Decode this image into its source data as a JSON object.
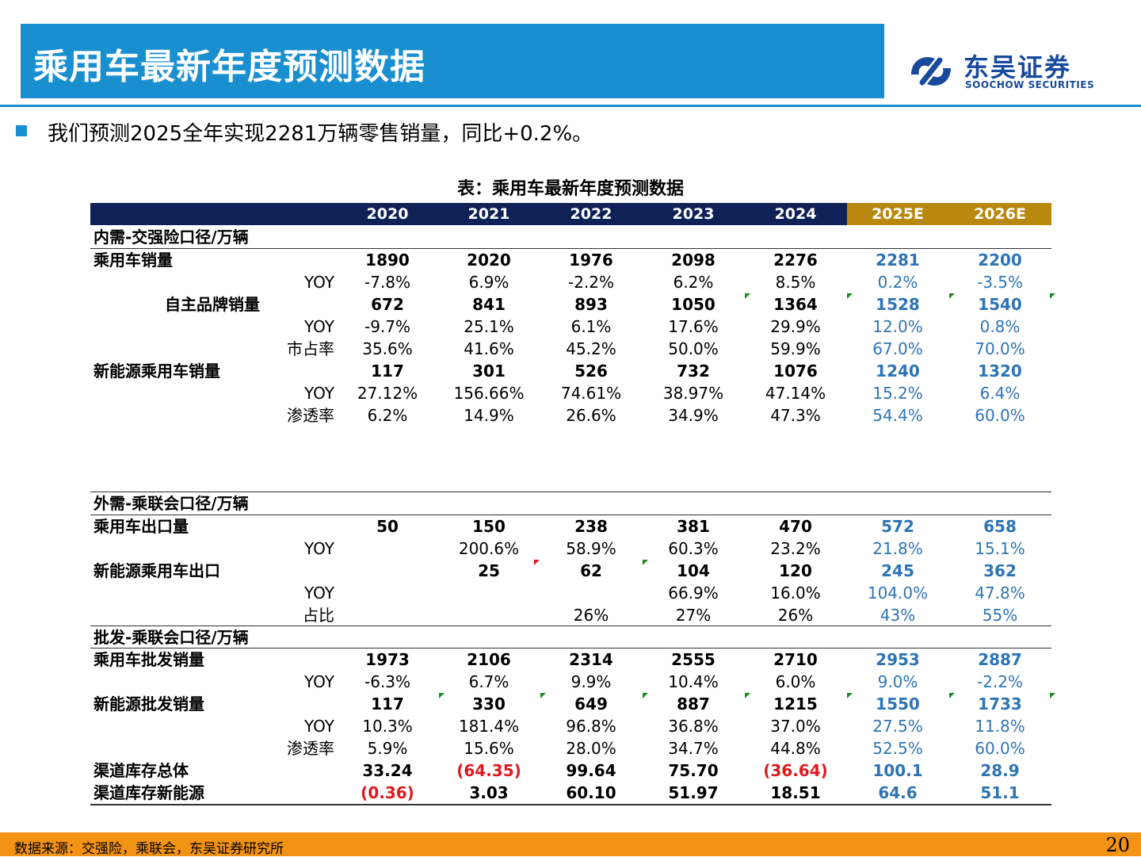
{
  "title": "乘用车最新年度预测数据",
  "logo": {
    "cn": "东吴证券",
    "en": "SOOCHOW SECURITIES",
    "icon": "soochow-logo-icon"
  },
  "bullet": "我们预测2025全年实现2281万辆零售销量，同比+0.2%。",
  "table_caption": "表：乘用车最新年度预测数据",
  "columns": [
    "2020",
    "2021",
    "2022",
    "2023",
    "2024",
    "2025E",
    "2026E"
  ],
  "sections": [
    {
      "title": "内需-交强险口径/万辆",
      "rows": [
        {
          "label": "乘用车销量",
          "indent": false,
          "values": [
            "1890",
            "2020",
            "1976",
            "2098",
            "2276",
            "2281",
            "2200"
          ],
          "bold": true
        },
        {
          "label": "YOY",
          "indent": true,
          "values": [
            "-7.8%",
            "6.9%",
            "-2.2%",
            "6.2%",
            "8.5%",
            "0.2%",
            "-3.5%"
          ]
        },
        {
          "label": "自主品牌销量",
          "indent": "mid",
          "values": [
            "672",
            "841",
            "893",
            "1050",
            "1364",
            "1528",
            "1540"
          ],
          "bold": true
        },
        {
          "label": "YOY",
          "indent": true,
          "values": [
            "-9.7%",
            "25.1%",
            "6.1%",
            "17.6%",
            "29.9%",
            "12.0%",
            "0.8%"
          ]
        },
        {
          "label": "市占率",
          "indent": true,
          "values": [
            "35.6%",
            "41.6%",
            "45.2%",
            "50.0%",
            "59.9%",
            "67.0%",
            "70.0%"
          ]
        },
        {
          "label": "新能源乘用车销量",
          "indent": false,
          "values": [
            "117",
            "301",
            "526",
            "732",
            "1076",
            "1240",
            "1320"
          ],
          "bold": true
        },
        {
          "label": "YOY",
          "indent": true,
          "values": [
            "27.12%",
            "156.66%",
            "74.61%",
            "38.97%",
            "47.14%",
            "15.2%",
            "6.4%"
          ]
        },
        {
          "label": "渗透率",
          "indent": true,
          "values": [
            "6.2%",
            "14.9%",
            "26.6%",
            "34.9%",
            "47.3%",
            "54.4%",
            "60.0%"
          ]
        }
      ]
    },
    {
      "title": "外需-乘联会口径/万辆",
      "rows": [
        {
          "label": "乘用车出口量",
          "indent": false,
          "values": [
            "50",
            "150",
            "238",
            "381",
            "470",
            "572",
            "658"
          ],
          "bold": true
        },
        {
          "label": "YOY",
          "indent": true,
          "values": [
            "",
            "200.6%",
            "58.9%",
            "60.3%",
            "23.2%",
            "21.8%",
            "15.1%"
          ]
        },
        {
          "label": "新能源乘用车出口",
          "indent": false,
          "values": [
            "",
            "25",
            "62",
            "104",
            "120",
            "245",
            "362"
          ],
          "bold": true
        },
        {
          "label": "YOY",
          "indent": true,
          "values": [
            "",
            "",
            "",
            "66.9%",
            "16.0%",
            "104.0%",
            "47.8%"
          ]
        },
        {
          "label": "占比",
          "indent": true,
          "values": [
            "",
            "",
            "26%",
            "27%",
            "26%",
            "43%",
            "55%"
          ]
        }
      ]
    },
    {
      "title": "批发-乘联会口径/万辆",
      "rows": [
        {
          "label": "乘用车批发销量",
          "indent": false,
          "values": [
            "1973",
            "2106",
            "2314",
            "2555",
            "2710",
            "2953",
            "2887"
          ],
          "bold": true
        },
        {
          "label": "YOY",
          "indent": true,
          "values": [
            "-6.3%",
            "6.7%",
            "9.9%",
            "10.4%",
            "6.0%",
            "9.0%",
            "-2.2%"
          ]
        },
        {
          "label": "新能源批发销量",
          "indent": false,
          "values": [
            "117",
            "330",
            "649",
            "887",
            "1215",
            "1550",
            "1733"
          ],
          "bold": true
        },
        {
          "label": "YOY",
          "indent": true,
          "values": [
            "10.3%",
            "181.4%",
            "96.8%",
            "36.8%",
            "37.0%",
            "27.5%",
            "11.8%"
          ]
        },
        {
          "label": "渗透率",
          "indent": true,
          "values": [
            "5.9%",
            "15.6%",
            "28.0%",
            "34.7%",
            "44.8%",
            "52.5%",
            "60.0%"
          ]
        },
        {
          "label": "渠道库存总体",
          "indent": false,
          "values": [
            "33.24",
            "(64.35)",
            "99.64",
            "75.70",
            "(36.64)",
            "100.1",
            "28.9"
          ],
          "bold": true
        },
        {
          "label": "渠道库存新能源",
          "indent": false,
          "values": [
            "(0.36)",
            "3.03",
            "60.10",
            "51.97",
            "18.51",
            "64.6",
            "51.1"
          ],
          "bold": true
        }
      ]
    }
  ],
  "colors": {
    "title_bar": "#1a8fd0",
    "header": "#0f2157",
    "forecast_header": "#b8880f",
    "forecast_text": "#2e74b5",
    "negative": "#e0191e",
    "footer": "#f39313"
  },
  "footer": {
    "source": "数据来源：交强险，乘联会，东吴证券研究所",
    "page": "20"
  }
}
